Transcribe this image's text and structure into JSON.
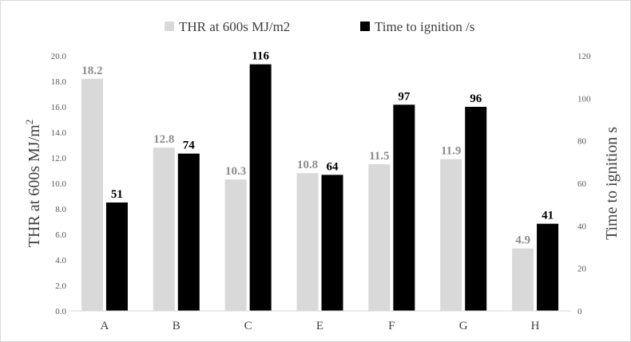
{
  "chart_data": {
    "type": "bar",
    "categories": [
      "A",
      "B",
      "C",
      "E",
      "F",
      "G",
      "H"
    ],
    "series": [
      {
        "name": "THR at 600s  MJ/m2",
        "axis": "left",
        "color": "#d9d9d9",
        "label_color": "#8c8c8c",
        "values": [
          18.2,
          12.8,
          10.3,
          10.8,
          11.5,
          11.9,
          4.9
        ],
        "labels": [
          "18.2",
          "12.8",
          "10.3",
          "10.8",
          "11.5",
          "11.9",
          "4.9"
        ]
      },
      {
        "name": "Time to ignition /s",
        "axis": "right",
        "color": "#000000",
        "label_color": "#000000",
        "values": [
          51,
          74,
          116,
          64,
          97,
          96,
          41
        ],
        "labels": [
          "51",
          "74",
          "116",
          "64",
          "97",
          "96",
          "41"
        ]
      }
    ],
    "y_left": {
      "label_main": "THR at 600s  MJ/m",
      "label_sup": "2",
      "ylim": [
        0,
        20
      ],
      "ticks": [
        "0.0",
        "2.0",
        "4.0",
        "6.0",
        "8.0",
        "10.0",
        "12.0",
        "14.0",
        "16.0",
        "18.0",
        "20.0"
      ]
    },
    "y_right": {
      "label": "Time to ignition s",
      "ylim": [
        0,
        120
      ],
      "ticks": [
        "0",
        "20",
        "40",
        "60",
        "80",
        "100",
        "120"
      ]
    },
    "legend_position": "top-center",
    "grid": false
  }
}
